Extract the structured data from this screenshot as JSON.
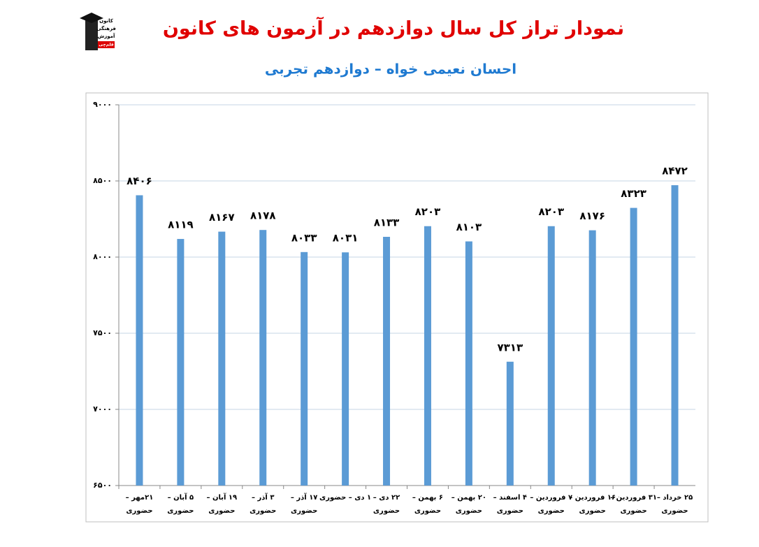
{
  "logo": [
    "کانون",
    "فرهنگی",
    "آموزش",
    "قلم‌چی"
  ],
  "chart_data": {
    "type": "bar",
    "title": "نمودار تراز کل سال دوازدهم در آزمون های کانون",
    "subtitle": "احسان نعیمی خواه – دوازدهم تجربی",
    "title_color": "#e00000",
    "subtitle_color": "#1f7ad1",
    "categories": [
      [
        "۲۱مهر –",
        "حضوری"
      ],
      [
        "۵ آبان –",
        "حضوری"
      ],
      [
        "۱۹ آبان –",
        "حضوری"
      ],
      [
        "۳ آذر –",
        "حضوری"
      ],
      [
        "۱۷ آذر –",
        "حضوری"
      ],
      [
        "۱ دی – حضوری"
      ],
      [
        "۲۲ دی –",
        "حضوری"
      ],
      [
        "۶ بهمن –",
        "حضوری"
      ],
      [
        "۲۰ بهمن –",
        "حضوری"
      ],
      [
        "۴ اسفند –",
        "حضوری"
      ],
      [
        "۷ فروردین –",
        "حضوری"
      ],
      [
        "۱۶ فروردین –",
        "حضوری"
      ],
      [
        "۳۱ فروردین –",
        "حضوری"
      ],
      [
        "۲۵ خرداد –",
        "حضوری"
      ]
    ],
    "values": [
      8406,
      8119,
      8167,
      8178,
      8033,
      8031,
      8133,
      8203,
      8103,
      7313,
      8203,
      8176,
      8323,
      8472
    ],
    "value_labels": [
      "۸۴۰۶",
      "۸۱۱۹",
      "۸۱۶۷",
      "۸۱۷۸",
      "۸۰۳۳",
      "۸۰۳۱",
      "۸۱۳۳",
      "۸۲۰۳",
      "۸۱۰۳",
      "۷۳۱۳",
      "۸۲۰۳",
      "۸۱۷۶",
      "۸۳۲۳",
      "۸۴۷۲"
    ],
    "color": "#5b9bd5",
    "ylim": [
      6500,
      9000
    ],
    "yticks": [
      {
        "value": 6500,
        "label": "۶۵۰۰"
      },
      {
        "value": 7000,
        "label": "۷۰۰۰"
      },
      {
        "value": 7500,
        "label": "۷۵۰۰"
      },
      {
        "value": 8000,
        "label": "۸۰۰۰"
      },
      {
        "value": 8500,
        "label": "۸۵۰۰"
      },
      {
        "value": 9000,
        "label": "۹۰۰۰"
      }
    ],
    "grid": true
  }
}
